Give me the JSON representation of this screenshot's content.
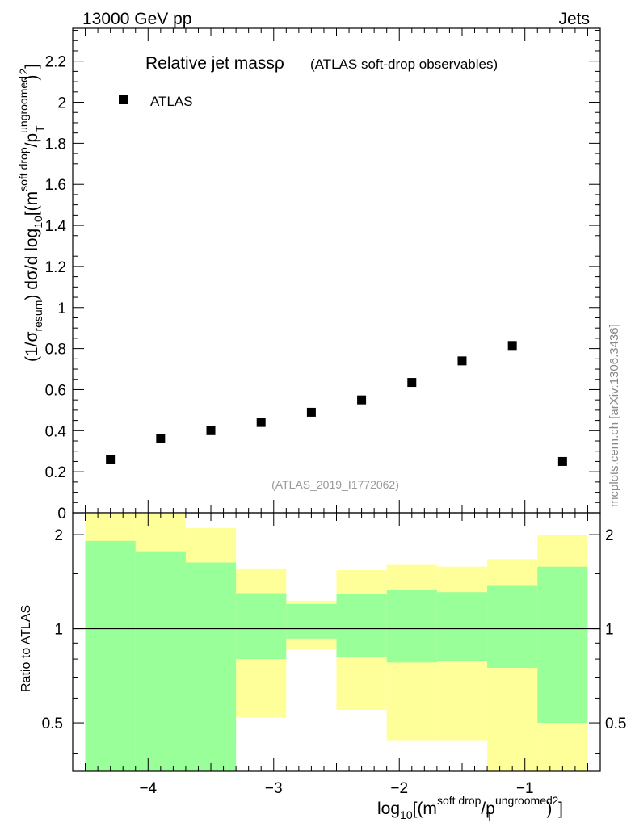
{
  "header": {
    "left": "13000 GeV pp",
    "right": "Jets",
    "watermark": "mcplots.cern.ch [arXiv:1306.3436]"
  },
  "chart_data": [
    {
      "type": "scatter",
      "title": "Relative jet massρ",
      "subtitle": "(ATLAS soft-drop observables)",
      "analysis_tag": "(ATLAS_2019_I1772062)",
      "ylabel_parts": {
        "a": "(1/σ",
        "a_sub": "resum",
        "b": ") dσ/d log",
        "b_sub": "10",
        "c": "[(m",
        "c_sup": "soft drop",
        "d": "/p",
        "d_sup": "ungroomed",
        "d_sub": "T",
        "e": ")",
        "e_sup": "2",
        "f": "]"
      },
      "xlim": [
        -4.6,
        -0.4
      ],
      "ylim": [
        0,
        2.36
      ],
      "y_ticks": [
        0,
        0.2,
        0.4,
        0.6,
        0.8,
        1,
        1.2,
        1.4,
        1.6,
        1.8,
        2,
        2.2
      ],
      "y_tick_labels": [
        "0",
        "0.2",
        "0.4",
        "0.6",
        "0.8",
        "1",
        "1.2",
        "1.4",
        "1.6",
        "1.8",
        "2",
        "2.2"
      ],
      "legend": {
        "label": "ATLAS",
        "position": "top-left"
      },
      "series": [
        {
          "name": "ATLAS",
          "x": [
            -4.3,
            -3.9,
            -3.5,
            -3.1,
            -2.7,
            -2.3,
            -1.9,
            -1.5,
            -1.1,
            -0.7
          ],
          "y": [
            0.26,
            0.36,
            0.4,
            0.44,
            0.49,
            0.55,
            0.635,
            0.74,
            0.815,
            0.25
          ]
        }
      ]
    },
    {
      "type": "area",
      "ylabel": "Ratio to ATLAS",
      "xlabel_parts": {
        "a": "log",
        "a_sub": "10",
        "b": "[(m",
        "b_sup": "soft drop",
        "c": "/p",
        "c_sup": "ungroomed",
        "c_sub": "T",
        "d": ")",
        "d_sup": "2",
        "e": "]"
      },
      "scale": "log",
      "xlim": [
        -4.6,
        -0.4
      ],
      "ylim": [
        0.35,
        2.35
      ],
      "x_ticks": [
        -4,
        -3,
        -2,
        -1
      ],
      "x_tick_labels": [
        "−4",
        "−3",
        "−2",
        "−1"
      ],
      "y_ticks": [
        0.5,
        1,
        2
      ],
      "y_tick_labels": [
        "0.5",
        "1",
        "2"
      ],
      "reference_line": 1,
      "bin_edges": [
        -4.5,
        -4.1,
        -3.7,
        -3.3,
        -2.9,
        -2.5,
        -2.1,
        -1.7,
        -1.3,
        -0.9,
        -0.5
      ],
      "bands": [
        {
          "name": "yellow band",
          "color": "#ffff99",
          "low": [
            0.35,
            0.35,
            0.42,
            0.52,
            0.86,
            0.55,
            0.44,
            0.44,
            0.35,
            0.35
          ],
          "high": [
            2.35,
            2.35,
            2.1,
            1.56,
            1.23,
            1.54,
            1.61,
            1.58,
            1.67,
            2.0
          ]
        },
        {
          "name": "green band",
          "color": "#99ff99",
          "low": [
            0.35,
            0.35,
            0.35,
            0.8,
            0.93,
            0.81,
            0.78,
            0.79,
            0.75,
            0.5
          ],
          "high": [
            1.91,
            1.77,
            1.63,
            1.3,
            1.2,
            1.29,
            1.33,
            1.31,
            1.38,
            1.58
          ]
        }
      ]
    }
  ]
}
